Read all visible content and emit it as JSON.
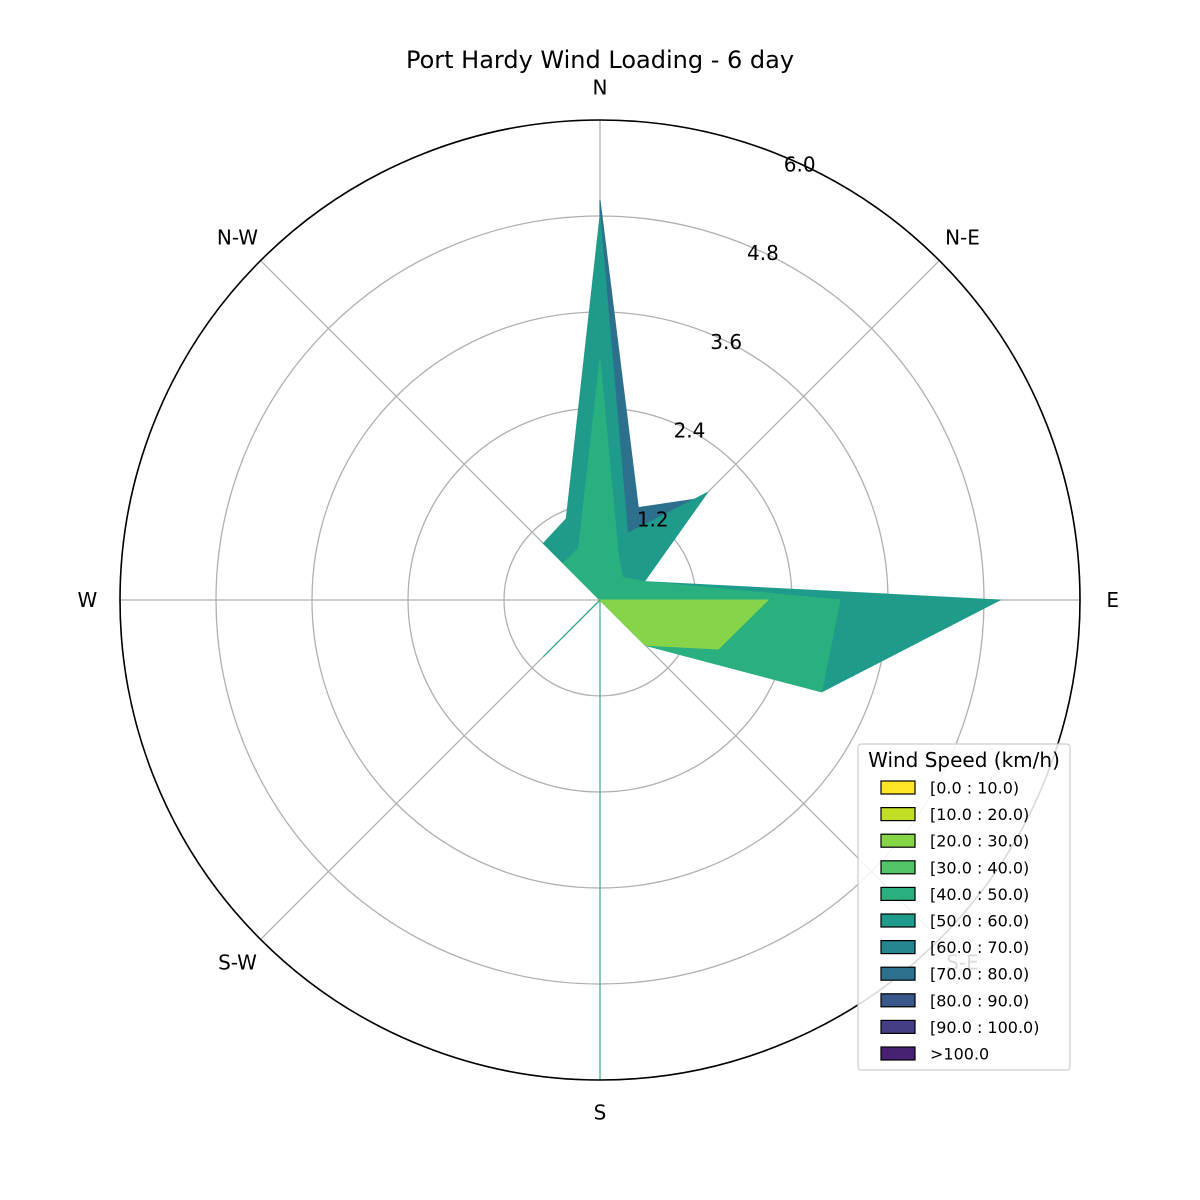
{
  "chart_data": {
    "type": "windrose",
    "title": "Port Hardy Wind Loading - 6 day",
    "directions": [
      "N",
      "N-E",
      "E",
      "S-E",
      "S",
      "S-W",
      "W",
      "N-W"
    ],
    "direction_angles_deg": [
      0,
      22.5,
      45,
      67.5,
      90,
      112.5,
      135,
      157.5,
      180,
      202.5,
      225,
      247.5,
      270,
      292.5,
      315,
      337.5
    ],
    "radial_ticks": [
      "1.2",
      "2.4",
      "3.6",
      "4.8",
      "6.0"
    ],
    "radial_tick_values": [
      1.2,
      2.4,
      3.6,
      4.8,
      6.0
    ],
    "rmax": 6.0,
    "grid": true,
    "legend": {
      "title": "Wind Speed (km/h)",
      "placement": "lower-right",
      "entries": [
        "[0.0 : 10.0)",
        "[10.0 : 20.0)",
        "[20.0 : 30.0)",
        "[30.0 : 40.0)",
        "[40.0 : 50.0)",
        "[50.0 : 60.0)",
        "[60.0 : 70.0)",
        "[70.0 : 80.0)",
        "[80.0 : 90.0)",
        "[90.0 : 100.0)",
        ">100.0"
      ],
      "colors": [
        "#fde725",
        "#c2df23",
        "#86d549",
        "#52c569",
        "#2ab07f",
        "#1e9b8a",
        "#25858e",
        "#2d708e",
        "#38588c",
        "#433e85",
        "#482173"
      ]
    },
    "series": [
      {
        "legend_index": 2,
        "color": "#86d549",
        "values": [
          0,
          0,
          0,
          0,
          2.1,
          1.6,
          0.8,
          0,
          0,
          0,
          0.0,
          0,
          0,
          0,
          0,
          0
        ]
      },
      {
        "legend_index": 4,
        "color": "#2ab07f",
        "values": [
          3.0,
          0.6,
          0.4,
          0.6,
          3.0,
          3.0,
          0.8,
          0,
          6.0,
          0,
          1.0,
          0,
          0,
          0,
          0.65,
          0.7
        ]
      },
      {
        "legend_index": 5,
        "color": "#1e9b8a",
        "values": [
          4.8,
          0.9,
          1.9,
          0.6,
          5.0,
          3.0,
          0.8,
          0,
          6.0,
          0,
          1.0,
          0,
          0,
          0,
          1.0,
          1.1
        ]
      },
      {
        "legend_index": 7,
        "color": "#2d708e",
        "values": [
          5.0,
          1.25,
          1.8,
          0,
          0,
          0,
          0,
          0,
          0,
          0,
          0,
          0,
          0,
          0,
          0,
          0
        ]
      }
    ]
  }
}
